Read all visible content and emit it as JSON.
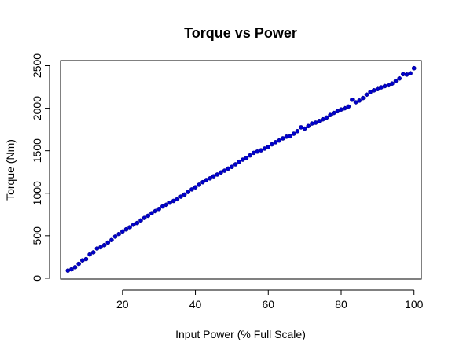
{
  "chart_data": {
    "type": "scatter",
    "title": "Torque vs Power",
    "xlabel": "Input Power (% Full Scale)",
    "ylabel": "Torque (Nm)",
    "xlim": [
      3,
      102
    ],
    "ylim": [
      -10,
      2560
    ],
    "x_ticks": [
      20,
      40,
      60,
      80,
      100
    ],
    "y_ticks": [
      0,
      500,
      1000,
      1500,
      2000,
      2500
    ],
    "grid": false,
    "legend": "none",
    "marker_color": "#0000CD",
    "marker_edge": "#00008B",
    "series": [
      {
        "x": [
          5,
          6,
          7,
          8,
          9,
          10,
          11,
          12,
          13,
          14,
          15,
          16,
          17,
          18,
          19,
          20,
          21,
          22,
          23,
          24,
          25,
          26,
          27,
          28,
          29,
          30,
          31,
          32,
          33,
          34,
          35,
          36,
          37,
          38,
          39,
          40,
          41,
          42,
          43,
          44,
          45,
          46,
          47,
          48,
          49,
          50,
          51,
          52,
          53,
          54,
          55,
          56,
          57,
          58,
          59,
          60,
          61,
          62,
          63,
          64,
          65,
          66,
          67,
          68,
          69,
          70,
          71,
          72,
          73,
          74,
          75,
          76,
          77,
          78,
          79,
          80,
          81,
          82,
          83,
          84,
          85,
          86,
          87,
          88,
          89,
          90,
          91,
          92,
          93,
          94,
          95,
          96,
          97,
          98,
          99,
          100
        ],
        "y": [
          90,
          105,
          130,
          170,
          210,
          225,
          280,
          305,
          350,
          365,
          390,
          420,
          450,
          490,
          520,
          550,
          575,
          600,
          630,
          650,
          680,
          710,
          735,
          765,
          790,
          815,
          845,
          865,
          890,
          910,
          930,
          960,
          985,
          1015,
          1045,
          1070,
          1100,
          1130,
          1155,
          1175,
          1200,
          1220,
          1245,
          1265,
          1290,
          1310,
          1340,
          1370,
          1395,
          1415,
          1445,
          1475,
          1490,
          1505,
          1525,
          1545,
          1575,
          1600,
          1620,
          1645,
          1665,
          1670,
          1700,
          1730,
          1775,
          1760,
          1790,
          1820,
          1830,
          1850,
          1870,
          1890,
          1920,
          1945,
          1965,
          1985,
          2000,
          2020,
          2100,
          2070,
          2090,
          2120,
          2160,
          2190,
          2210,
          2225,
          2245,
          2260,
          2270,
          2290,
          2320,
          2350,
          2400,
          2395,
          2410,
          2470
        ]
      }
    ]
  }
}
